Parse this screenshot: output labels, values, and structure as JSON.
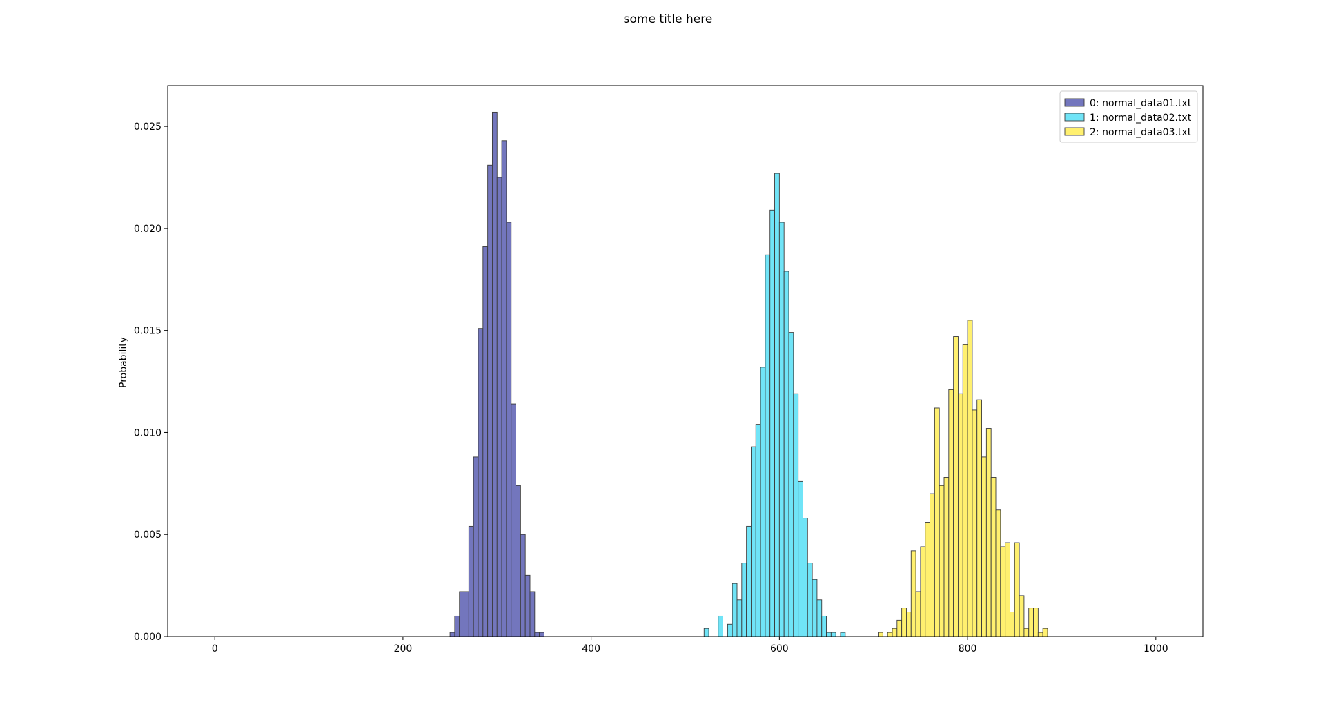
{
  "chart_data": {
    "type": "histogram",
    "title": "some title here",
    "xlabel": "",
    "ylabel": "Probability",
    "xlim": [
      -50,
      1050
    ],
    "ylim": [
      0,
      0.027
    ],
    "x_ticks": [
      0,
      200,
      400,
      600,
      800,
      1000
    ],
    "y_ticks": [
      0.0,
      0.005,
      0.01,
      0.015,
      0.02,
      0.025
    ],
    "y_tick_decimals": 3,
    "bin_width": 5,
    "grid": false,
    "legend_position": "top-right",
    "series": [
      {
        "name": "0: normal_data01.txt",
        "color": "#7376bd",
        "bins": [
          [
            252.5,
            0.0002
          ],
          [
            257.5,
            0.001
          ],
          [
            262.5,
            0.0022
          ],
          [
            267.5,
            0.0022
          ],
          [
            272.5,
            0.0054
          ],
          [
            277.5,
            0.0088
          ],
          [
            282.5,
            0.0151
          ],
          [
            287.5,
            0.0191
          ],
          [
            292.5,
            0.0231
          ],
          [
            297.5,
            0.0257
          ],
          [
            302.5,
            0.0225
          ],
          [
            307.5,
            0.0243
          ],
          [
            312.5,
            0.0203
          ],
          [
            317.5,
            0.0114
          ],
          [
            322.5,
            0.0074
          ],
          [
            327.5,
            0.005
          ],
          [
            332.5,
            0.003
          ],
          [
            337.5,
            0.0022
          ],
          [
            342.5,
            0.0002
          ],
          [
            347.5,
            0.0002
          ]
        ]
      },
      {
        "name": "1: normal_data02.txt",
        "color": "#70e4f7",
        "bins": [
          [
            522.5,
            0.0004
          ],
          [
            537.5,
            0.001
          ],
          [
            547.5,
            0.0006
          ],
          [
            552.5,
            0.0026
          ],
          [
            557.5,
            0.0018
          ],
          [
            562.5,
            0.0036
          ],
          [
            567.5,
            0.0054
          ],
          [
            572.5,
            0.0093
          ],
          [
            577.5,
            0.0104
          ],
          [
            582.5,
            0.0132
          ],
          [
            587.5,
            0.0187
          ],
          [
            592.5,
            0.0209
          ],
          [
            597.5,
            0.0227
          ],
          [
            602.5,
            0.0203
          ],
          [
            607.5,
            0.0179
          ],
          [
            612.5,
            0.0149
          ],
          [
            617.5,
            0.0119
          ],
          [
            622.5,
            0.0076
          ],
          [
            627.5,
            0.0058
          ],
          [
            632.5,
            0.0036
          ],
          [
            637.5,
            0.0028
          ],
          [
            642.5,
            0.0018
          ],
          [
            647.5,
            0.001
          ],
          [
            652.5,
            0.0002
          ],
          [
            657.5,
            0.0002
          ],
          [
            667.5,
            0.0002
          ]
        ]
      },
      {
        "name": "2: normal_data03.txt",
        "color": "#fff06f",
        "bins": [
          [
            707.5,
            0.0002
          ],
          [
            717.5,
            0.0002
          ],
          [
            722.5,
            0.0004
          ],
          [
            727.5,
            0.0008
          ],
          [
            732.5,
            0.0014
          ],
          [
            737.5,
            0.0012
          ],
          [
            742.5,
            0.0042
          ],
          [
            747.5,
            0.0022
          ],
          [
            752.5,
            0.0044
          ],
          [
            757.5,
            0.0056
          ],
          [
            762.5,
            0.007
          ],
          [
            767.5,
            0.0112
          ],
          [
            772.5,
            0.0074
          ],
          [
            777.5,
            0.0078
          ],
          [
            782.5,
            0.0121
          ],
          [
            787.5,
            0.0147
          ],
          [
            792.5,
            0.0119
          ],
          [
            797.5,
            0.0143
          ],
          [
            802.5,
            0.0155
          ],
          [
            807.5,
            0.0111
          ],
          [
            812.5,
            0.0116
          ],
          [
            817.5,
            0.0088
          ],
          [
            822.5,
            0.0102
          ],
          [
            827.5,
            0.0078
          ],
          [
            832.5,
            0.0062
          ],
          [
            837.5,
            0.0044
          ],
          [
            842.5,
            0.0046
          ],
          [
            847.5,
            0.0012
          ],
          [
            852.5,
            0.0046
          ],
          [
            857.5,
            0.002
          ],
          [
            862.5,
            0.0004
          ],
          [
            867.5,
            0.0014
          ],
          [
            872.5,
            0.0014
          ],
          [
            877.5,
            0.0002
          ],
          [
            882.5,
            0.0004
          ]
        ]
      }
    ]
  }
}
